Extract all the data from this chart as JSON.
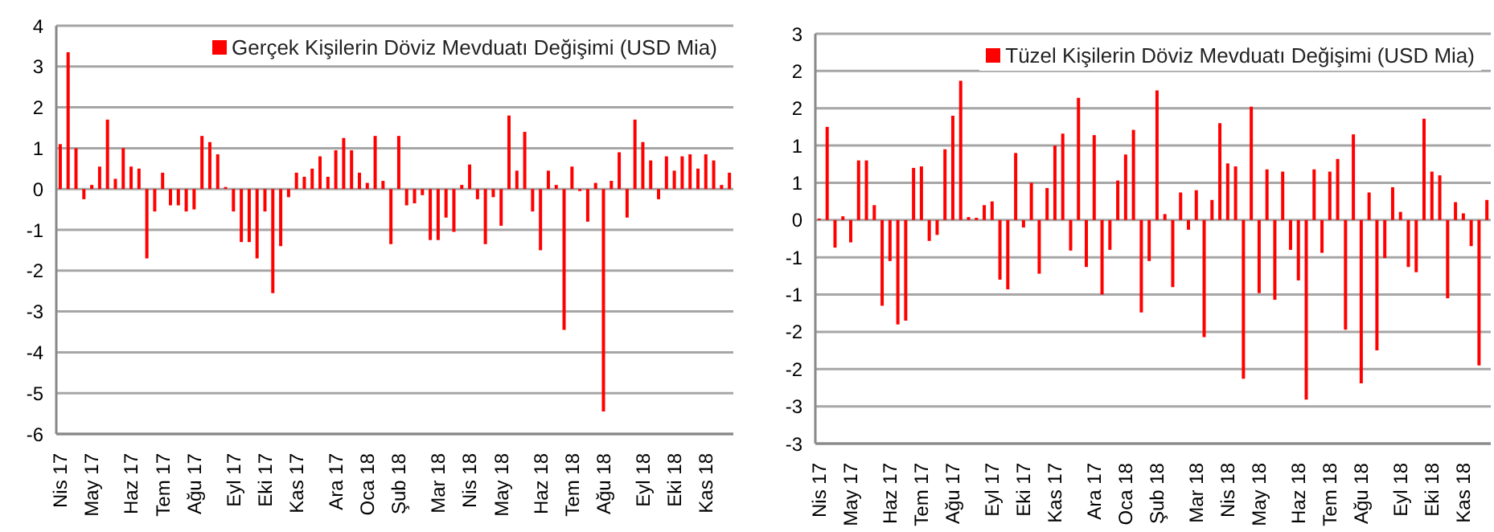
{
  "chart_data": [
    {
      "type": "bar",
      "categories": [
        "Nis 17",
        null,
        null,
        null,
        "May 17",
        null,
        null,
        null,
        null,
        "Haz 17",
        null,
        null,
        null,
        "Tem 17",
        null,
        null,
        null,
        "Ağu 17",
        null,
        null,
        null,
        null,
        "Eyl 17",
        null,
        null,
        null,
        "Eki 17",
        null,
        null,
        null,
        "Kas 17",
        null,
        null,
        null,
        null,
        "Ara 17",
        null,
        null,
        null,
        "Oca 18",
        null,
        null,
        null,
        "Şub 18",
        null,
        null,
        null,
        null,
        "Mar 18",
        null,
        null,
        null,
        "Nis 18",
        null,
        null,
        null,
        "May 18",
        null,
        null,
        null,
        null,
        "Haz 18",
        null,
        null,
        null,
        "Tem 18",
        null,
        null,
        null,
        "Ağu 18",
        null,
        null,
        null,
        null,
        "Eyl 18",
        null,
        null,
        null,
        "Eki 18",
        null,
        null,
        null,
        "Kas 18",
        null,
        null,
        null
      ],
      "series": [
        {
          "name": "Gerçek Kişilerin Döviz Mevduatı Değişimi (USD Mia)",
          "color": "#ff0000",
          "values": [
            1.1,
            3.35,
            1.0,
            -0.25,
            0.1,
            0.55,
            1.7,
            0.25,
            1.0,
            0.55,
            0.5,
            -1.7,
            -0.55,
            0.4,
            -0.4,
            -0.4,
            -0.55,
            -0.5,
            1.3,
            1.15,
            0.85,
            0.05,
            -0.55,
            -1.3,
            -1.3,
            -1.7,
            -0.55,
            -2.55,
            -1.4,
            -0.2,
            0.4,
            0.3,
            0.5,
            0.8,
            0.3,
            0.95,
            1.25,
            0.95,
            0.4,
            0.15,
            1.3,
            0.2,
            -1.35,
            1.3,
            -0.4,
            -0.35,
            -0.15,
            -1.25,
            -1.25,
            -0.7,
            -1.05,
            0.1,
            0.6,
            -0.25,
            -1.35,
            -0.2,
            -0.9,
            1.8,
            0.45,
            1.4,
            -0.55,
            -1.5,
            0.45,
            0.1,
            -3.45,
            0.55,
            -0.05,
            -0.8,
            0.15,
            -5.45,
            0.2,
            0.9,
            -0.7,
            1.7,
            1.15,
            0.7,
            -0.25,
            0.8,
            0.45,
            0.8,
            0.85,
            0.5,
            0.85,
            0.7,
            0.1,
            0.4
          ]
        }
      ],
      "ylim": [
        -6,
        4
      ],
      "yticks": [
        -6,
        -5,
        -4,
        -3,
        -2,
        -1,
        0,
        1,
        2,
        3,
        4
      ],
      "grid": "y",
      "legend": "top right"
    },
    {
      "type": "bar",
      "categories": [
        "Nis 17",
        null,
        null,
        null,
        "May 17",
        null,
        null,
        null,
        null,
        "Haz 17",
        null,
        null,
        null,
        "Tem 17",
        null,
        null,
        null,
        "Ağu 17",
        null,
        null,
        null,
        null,
        "Eyl 17",
        null,
        null,
        null,
        "Eki 17",
        null,
        null,
        null,
        "Kas 17",
        null,
        null,
        null,
        null,
        "Ara 17",
        null,
        null,
        null,
        "Oca 18",
        null,
        null,
        null,
        "Şub 18",
        null,
        null,
        null,
        null,
        "Mar 18",
        null,
        null,
        null,
        "Nis 18",
        null,
        null,
        null,
        "May 18",
        null,
        null,
        null,
        null,
        "Haz 18",
        null,
        null,
        null,
        "Tem 18",
        null,
        null,
        null,
        "Ağu 18",
        null,
        null,
        null,
        null,
        "Eyl 18",
        null,
        null,
        null,
        "Eki 18",
        null,
        null,
        null,
        "Kas 18",
        null,
        null,
        null
      ],
      "series": [
        {
          "name": "Tüzel Kişilerin Döviz Mevduatı Değişimi (USD Mia)",
          "color": "#ff0000",
          "values": [
            0.02,
            1.25,
            -0.37,
            0.05,
            -0.3,
            0.8,
            0.8,
            0.2,
            -1.15,
            -0.55,
            -1.4,
            -1.35,
            0.7,
            0.72,
            -0.28,
            -0.2,
            0.95,
            1.4,
            1.87,
            0.04,
            0.03,
            0.2,
            0.25,
            -0.8,
            -0.93,
            0.9,
            -0.1,
            0.5,
            -0.72,
            0.43,
            1.0,
            1.16,
            -0.41,
            1.64,
            -0.63,
            1.14,
            -1.0,
            -0.4,
            0.53,
            0.88,
            1.21,
            -1.24,
            -0.55,
            1.74,
            0.08,
            -0.9,
            0.37,
            -0.13,
            0.4,
            -1.57,
            0.27,
            1.3,
            0.76,
            0.72,
            -2.13,
            1.52,
            -0.98,
            0.68,
            -1.07,
            0.65,
            -0.4,
            -0.81,
            -2.41,
            0.68,
            -0.44,
            0.65,
            0.82,
            -1.47,
            1.15,
            -2.19,
            0.37,
            -1.75,
            -0.51,
            0.44,
            0.11,
            -0.63,
            -0.7,
            1.36,
            0.65,
            0.6,
            -1.05,
            0.24,
            0.09,
            -0.35,
            -1.95,
            0.27
          ]
        }
      ],
      "ylim": [
        -3,
        2.5
      ],
      "yticks": [
        {
          "value": -3,
          "label": "-3"
        },
        {
          "value": -2.5,
          "label": "-3"
        },
        {
          "value": -2,
          "label": "-2"
        },
        {
          "value": -1.5,
          "label": "-2"
        },
        {
          "value": -1,
          "label": "-1"
        },
        {
          "value": -0.5,
          "label": "-1"
        },
        {
          "value": 0,
          "label": "0"
        },
        {
          "value": 0.5,
          "label": "1"
        },
        {
          "value": 1,
          "label": "1"
        },
        {
          "value": 1.5,
          "label": "2"
        },
        {
          "value": 2,
          "label": "2"
        },
        {
          "value": 2.5,
          "label": "3"
        }
      ],
      "grid": "y",
      "legend": "top right"
    }
  ]
}
